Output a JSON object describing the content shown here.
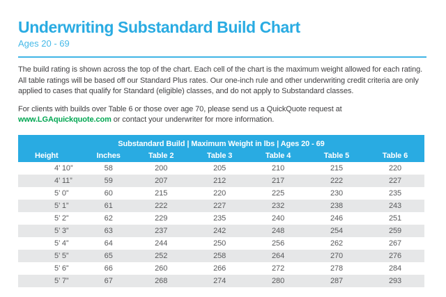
{
  "header": {
    "title": "Underwriting Substandard Build Chart",
    "subtitle": "Ages 20 - 69"
  },
  "intro": {
    "paragraph": "The build rating is shown across the top of the chart. Each cell of the chart is the maximum weight allowed for each rating. All table ratings will be based off our Standard Plus rates. Our one-inch rule and other underwriting credit criteria are only applied to cases that qualify for Standard (eligible) classes, and do not apply to Substandard classes.",
    "note_before_link": "For clients with builds over Table 6 or those over age 70, please send us a QuickQuote request at ",
    "note_link": "www.LGAquickquote.com",
    "note_after_link": " or contact your underwriter for more information."
  },
  "table": {
    "banner": "Substandard Build | Maximum Weight in lbs | Ages 20 - 69",
    "columns": [
      "Height",
      "Inches",
      "Table 2",
      "Table 3",
      "Table 4",
      "Table 5",
      "Table 6"
    ],
    "rows": [
      [
        "4’ 10”",
        "58",
        "200",
        "205",
        "210",
        "215",
        "220"
      ],
      [
        "4’ 11”",
        "59",
        "207",
        "212",
        "217",
        "222",
        "227"
      ],
      [
        "5’ 0”",
        "60",
        "215",
        "220",
        "225",
        "230",
        "235"
      ],
      [
        "5’ 1”",
        "61",
        "222",
        "227",
        "232",
        "238",
        "243"
      ],
      [
        "5’ 2”",
        "62",
        "229",
        "235",
        "240",
        "246",
        "251"
      ],
      [
        "5’ 3”",
        "63",
        "237",
        "242",
        "248",
        "254",
        "259"
      ],
      [
        "5’ 4”",
        "64",
        "244",
        "250",
        "256",
        "262",
        "267"
      ],
      [
        "5’ 5”",
        "65",
        "252",
        "258",
        "264",
        "270",
        "276"
      ],
      [
        "5’ 6”",
        "66",
        "260",
        "266",
        "272",
        "278",
        "284"
      ],
      [
        "5’ 7”",
        "67",
        "268",
        "274",
        "280",
        "287",
        "293"
      ]
    ]
  },
  "colors": {
    "accent_blue": "#29ABE2",
    "subtitle_blue": "#45B9E8",
    "link_green": "#00A651",
    "body_text": "#414042",
    "table_text": "#58595B",
    "stripe_gray": "#E6E7E8"
  }
}
